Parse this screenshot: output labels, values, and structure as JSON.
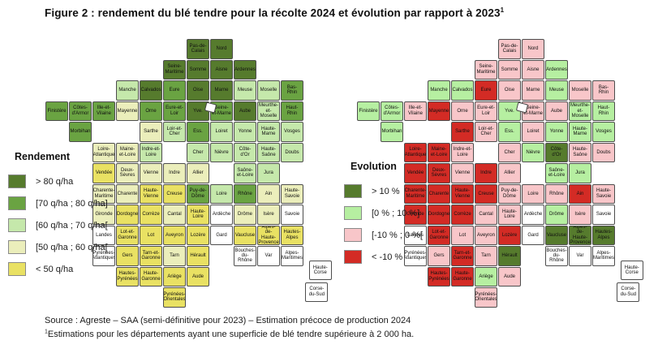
{
  "figure": {
    "title": "Figure 2 : rendement du blé tendre pour la récolte 2024 et évolution par rapport à 2023",
    "title_superscript": "1",
    "source": "Source : Agreste – SAA (semi-définitive pour 2023) – Estimation précoce de production 2024",
    "footnote_superscript": "1",
    "footnote": "Estimations pour les départements ayant une superficie de blé tendre supérieure à 2 000 ha."
  },
  "chart_data": {
    "type": "heatmap",
    "subtype": "choropleth, French départements, two side-by-side maps",
    "no_data_color": "#ffffff",
    "maps": [
      {
        "key": "rendement",
        "legend_title": "Rendement",
        "legend_position": "middle-left",
        "classes": [
          {
            "id": "A",
            "label": "> 80 q/ha",
            "color": "#567b2d"
          },
          {
            "id": "B",
            "label": "[70 q/ha ; 80 q/ha]",
            "color": "#6aa342"
          },
          {
            "id": "C",
            "label": "[60 q/ha ; 70 q/ha[",
            "color": "#c5e8ab"
          },
          {
            "id": "D",
            "label": "[50 q/ha ; 60 q/ha[",
            "color": "#ebeebb"
          },
          {
            "id": "E",
            "label": "< 50 q/ha",
            "color": "#e9e163"
          }
        ]
      },
      {
        "key": "evolution",
        "legend_title": "Evolution",
        "legend_position": "middle-left",
        "classes": [
          {
            "id": "A",
            "label": "> 10 %",
            "color": "#567b2d"
          },
          {
            "id": "B",
            "label": "[0 % ; 10 %]",
            "color": "#b6efa1"
          },
          {
            "id": "C",
            "label": "[-10 % ; 0 %[",
            "color": "#f8c6c9"
          },
          {
            "id": "D",
            "label": "< -10 %",
            "color": "#d32b25"
          }
        ]
      }
    ],
    "departements": [
      {
        "name": "Pas-de-Calais",
        "rendement": "A",
        "evolution": "C"
      },
      {
        "name": "Nord",
        "rendement": "A",
        "evolution": "C"
      },
      {
        "name": "Seine-Maritime",
        "rendement": "A",
        "evolution": "C"
      },
      {
        "name": "Somme",
        "rendement": "A",
        "evolution": "C"
      },
      {
        "name": "Aisne",
        "rendement": "A",
        "evolution": "C"
      },
      {
        "name": "Ardennes",
        "rendement": "A",
        "evolution": "B"
      },
      {
        "name": "Manche",
        "rendement": "C",
        "evolution": "B"
      },
      {
        "name": "Calvados",
        "rendement": "A",
        "evolution": "B"
      },
      {
        "name": "Eure",
        "rendement": "B",
        "evolution": "D"
      },
      {
        "name": "Oise",
        "rendement": "A",
        "evolution": "C"
      },
      {
        "name": "Marne",
        "rendement": "A",
        "evolution": "C"
      },
      {
        "name": "Meuse",
        "rendement": "C",
        "evolution": "B"
      },
      {
        "name": "Moselle",
        "rendement": "C",
        "evolution": "C"
      },
      {
        "name": "Bas-Rhin",
        "rendement": "B",
        "evolution": "C"
      },
      {
        "name": "Finistère",
        "rendement": "B",
        "evolution": "B"
      },
      {
        "name": "Côtes-d'Armor",
        "rendement": "B",
        "evolution": "B"
      },
      {
        "name": "Ille-et-Vilaine",
        "rendement": "B",
        "evolution": "C"
      },
      {
        "name": "Mayenne",
        "rendement": "D",
        "evolution": "D"
      },
      {
        "name": "Orne",
        "rendement": "B",
        "evolution": "C"
      },
      {
        "name": "Eure-et-Loir",
        "rendement": "B",
        "evolution": "C"
      },
      {
        "name": "Yvelines",
        "display": "Yve.",
        "rendement": "A",
        "evolution": "B"
      },
      {
        "name": "Seine-et-Marne",
        "rendement": "B",
        "evolution": "C"
      },
      {
        "name": "Aube",
        "rendement": "A",
        "evolution": "C"
      },
      {
        "name": "Meurthe-et-Moselle",
        "rendement": "C",
        "evolution": "B"
      },
      {
        "name": "Haut-Rhin",
        "rendement": "B",
        "evolution": "B"
      },
      {
        "name": "Morbihan",
        "rendement": "B",
        "evolution": "B"
      },
      {
        "name": "Sarthe",
        "rendement": "D",
        "evolution": "D"
      },
      {
        "name": "Loir-et-Cher",
        "rendement": "C",
        "evolution": "C"
      },
      {
        "name": "Essonne",
        "display": "Ess.",
        "rendement": "B",
        "evolution": "B"
      },
      {
        "name": "Loiret",
        "rendement": "C",
        "evolution": "C"
      },
      {
        "name": "Yonne",
        "rendement": "C",
        "evolution": "B"
      },
      {
        "name": "Haute-Marne",
        "rendement": "C",
        "evolution": "B"
      },
      {
        "name": "Vosges",
        "rendement": "C",
        "evolution": "B"
      },
      {
        "name": "Loire-Atlantique",
        "rendement": "D",
        "evolution": "D"
      },
      {
        "name": "Maine-et-Loire",
        "rendement": "D",
        "evolution": "D"
      },
      {
        "name": "Indre-et-Loire",
        "rendement": "C",
        "evolution": "C"
      },
      {
        "name": "Cher",
        "rendement": "C",
        "evolution": "C"
      },
      {
        "name": "Nièvre",
        "rendement": "C",
        "evolution": "B"
      },
      {
        "name": "Côte-d'Or",
        "rendement": "C",
        "evolution": "A"
      },
      {
        "name": "Haute-Saône",
        "rendement": "C",
        "evolution": "C"
      },
      {
        "name": "Doubs",
        "rendement": "C",
        "evolution": "C"
      },
      {
        "name": "Vendée",
        "rendement": "E",
        "evolution": "D"
      },
      {
        "name": "Deux-Sèvres",
        "rendement": "D",
        "evolution": "D"
      },
      {
        "name": "Vienne",
        "rendement": "D",
        "evolution": "C"
      },
      {
        "name": "Indre",
        "rendement": "D",
        "evolution": "D"
      },
      {
        "name": "Allier",
        "rendement": "D",
        "evolution": "C"
      },
      {
        "name": "Saône-et-Loire",
        "rendement": "C",
        "evolution": "B"
      },
      {
        "name": "Jura",
        "rendement": "C",
        "evolution": "B"
      },
      {
        "name": "Charente-Maritime",
        "rendement": "D",
        "evolution": "D"
      },
      {
        "name": "Charente",
        "rendement": "D",
        "evolution": "D"
      },
      {
        "name": "Haute-Vienne",
        "rendement": "E",
        "evolution": "D"
      },
      {
        "name": "Creuse",
        "rendement": "E",
        "evolution": "D"
      },
      {
        "name": "Puy-de-Dôme",
        "rendement": "B",
        "evolution": "C"
      },
      {
        "name": "Loire",
        "rendement": "C",
        "evolution": "C"
      },
      {
        "name": "Rhône",
        "rendement": "B",
        "evolution": "C"
      },
      {
        "name": "Ain",
        "rendement": "D",
        "evolution": "D"
      },
      {
        "name": "Haute-Savoie",
        "rendement": "D",
        "evolution": "C"
      },
      {
        "name": "Gironde",
        "rendement": "D",
        "evolution": "D"
      },
      {
        "name": "Dordogne",
        "rendement": "E",
        "evolution": "D"
      },
      {
        "name": "Corrèze",
        "rendement": "E",
        "evolution": "D"
      },
      {
        "name": "Cantal",
        "rendement": "D",
        "evolution": "C"
      },
      {
        "name": "Haute-Loire",
        "rendement": "E",
        "evolution": "C"
      },
      {
        "name": "Ardèche",
        "rendement": "N",
        "evolution": "N"
      },
      {
        "name": "Drôme",
        "rendement": "D",
        "evolution": "B"
      },
      {
        "name": "Isère",
        "rendement": "D",
        "evolution": "C"
      },
      {
        "name": "Savoie",
        "rendement": "N",
        "evolution": "N"
      },
      {
        "name": "Landes",
        "rendement": "N",
        "evolution": "N"
      },
      {
        "name": "Lot-et-Garonne",
        "rendement": "E",
        "evolution": "D"
      },
      {
        "name": "Lot",
        "rendement": "E",
        "evolution": "C"
      },
      {
        "name": "Aveyron",
        "rendement": "E",
        "evolution": "C"
      },
      {
        "name": "Lozère",
        "rendement": "E",
        "evolution": "D"
      },
      {
        "name": "Gard",
        "rendement": "N",
        "evolution": "N"
      },
      {
        "name": "Vaucluse",
        "rendement": "E",
        "evolution": "A"
      },
      {
        "name": "Alpes-de-Haute-Provence",
        "rendement": "E",
        "evolution": "A"
      },
      {
        "name": "Hautes-Alpes",
        "rendement": "E",
        "evolution": "A"
      },
      {
        "name": "Pyrénées-Atlantiques",
        "rendement": "N",
        "evolution": "N"
      },
      {
        "name": "Gers",
        "rendement": "E",
        "evolution": "C"
      },
      {
        "name": "Tarn-et-Garonne",
        "rendement": "E",
        "evolution": "D"
      },
      {
        "name": "Tarn",
        "rendement": "D",
        "evolution": "C"
      },
      {
        "name": "Hérault",
        "rendement": "E",
        "evolution": "A"
      },
      {
        "name": "Bouches-du-Rhône",
        "rendement": "N",
        "evolution": "N"
      },
      {
        "name": "Var",
        "rendement": "N",
        "evolution": "N"
      },
      {
        "name": "Alpes-Maritimes",
        "rendement": "N",
        "evolution": "N"
      },
      {
        "name": "Hautes-Pyrénées",
        "rendement": "E",
        "evolution": "D"
      },
      {
        "name": "Haute-Garonne",
        "rendement": "E",
        "evolution": "D"
      },
      {
        "name": "Ariège",
        "rendement": "E",
        "evolution": "B"
      },
      {
        "name": "Aude",
        "rendement": "E",
        "evolution": "C"
      },
      {
        "name": "Pyrénées-Orientales",
        "rendement": "E",
        "evolution": "C"
      },
      {
        "name": "Haute-Corse",
        "rendement": "N",
        "evolution": "N"
      },
      {
        "name": "Corse-du-Sud",
        "rendement": "N",
        "evolution": "N"
      }
    ]
  }
}
